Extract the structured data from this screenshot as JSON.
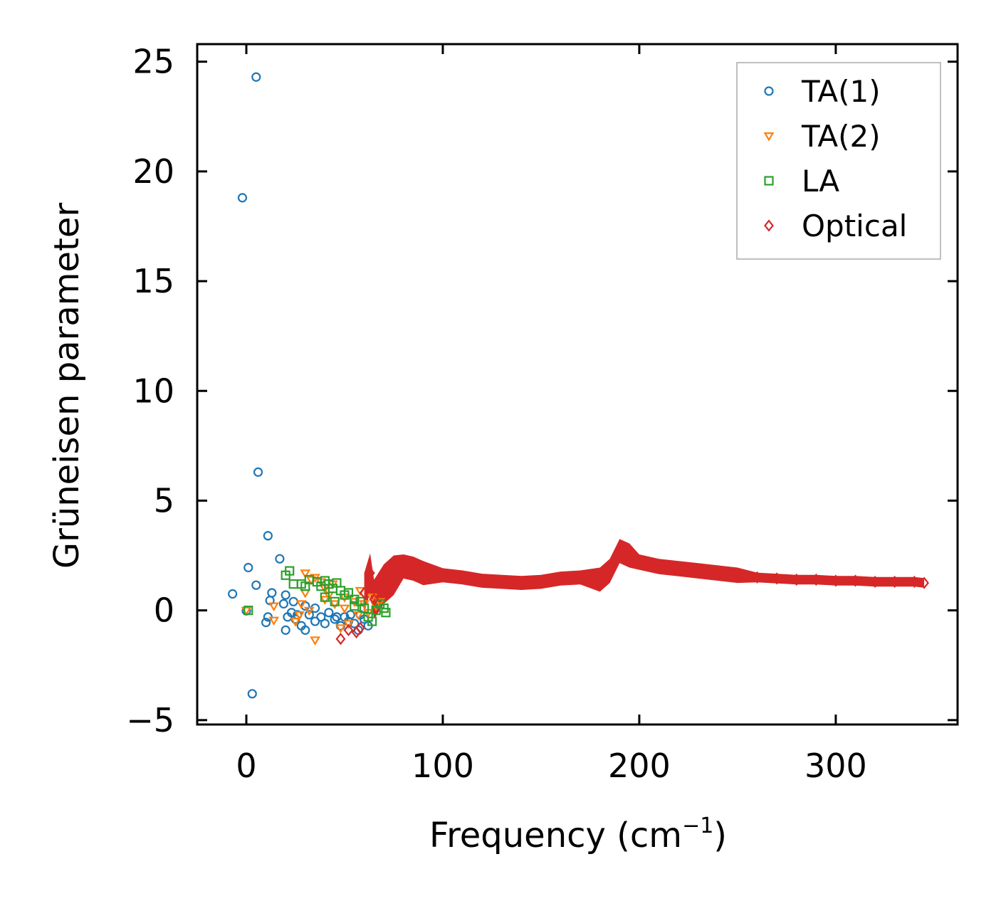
{
  "chart_data": {
    "type": "scatter",
    "xlabel_main": "Frequency (cm",
    "xlabel_sup": "−1",
    "xlabel_close": ")",
    "ylabel": "Grüneisen parameter",
    "xlim": [
      -25,
      362
    ],
    "ylim": [
      -5.2,
      25.8
    ],
    "x_ticks": [
      0,
      100,
      200,
      300
    ],
    "x_tick_labels": [
      "0",
      "100",
      "200",
      "300"
    ],
    "y_ticks": [
      -5,
      0,
      5,
      10,
      15,
      20,
      25
    ],
    "y_tick_labels": [
      "−5",
      "0",
      "5",
      "10",
      "15",
      "20",
      "25"
    ],
    "legend_position": "top-right",
    "series": [
      {
        "name": "TA(1)",
        "marker": "circle",
        "color": "#1f77b4",
        "points": [
          [
            5,
            24.3
          ],
          [
            -2,
            18.8
          ],
          [
            6,
            6.3
          ],
          [
            11,
            3.4
          ],
          [
            1,
            1.95
          ],
          [
            17,
            2.35
          ],
          [
            5,
            1.15
          ],
          [
            -7,
            0.75
          ],
          [
            0,
            -0.02
          ],
          [
            3,
            -3.8
          ],
          [
            13,
            0.8
          ],
          [
            20,
            0.7
          ],
          [
            11,
            -0.3
          ],
          [
            10,
            -0.55
          ],
          [
            12,
            0.45
          ],
          [
            19,
            0.3
          ],
          [
            21,
            -0.3
          ],
          [
            23,
            -0.1
          ],
          [
            25,
            -0.4
          ],
          [
            28,
            -0.7
          ],
          [
            30,
            -0.9
          ],
          [
            20,
            -0.9
          ],
          [
            32,
            -0.2
          ],
          [
            35,
            -0.5
          ],
          [
            38,
            -0.3
          ],
          [
            40,
            -0.6
          ],
          [
            42,
            -0.1
          ],
          [
            45,
            -0.4
          ],
          [
            48,
            -0.7
          ],
          [
            50,
            -0.3
          ],
          [
            52,
            -0.5
          ],
          [
            55,
            -0.6
          ],
          [
            57,
            -0.9
          ],
          [
            58,
            -0.2
          ],
          [
            60,
            -0.4
          ],
          [
            62,
            -0.7
          ],
          [
            30,
            0.2
          ],
          [
            35,
            0.1
          ],
          [
            24,
            0.4
          ],
          [
            26,
            -0.2
          ],
          [
            46,
            -0.3
          ],
          [
            53,
            -0.2
          ]
        ]
      },
      {
        "name": "TA(2)",
        "marker": "triangle-down",
        "color": "#ff7f0e",
        "points": [
          [
            0,
            0.0
          ],
          [
            14,
            0.2
          ],
          [
            14,
            -0.45
          ],
          [
            25,
            -0.5
          ],
          [
            30,
            0.8
          ],
          [
            30,
            1.7
          ],
          [
            33,
            1.4
          ],
          [
            35,
            1.5
          ],
          [
            35,
            -1.35
          ],
          [
            38,
            1.3
          ],
          [
            40,
            1.0
          ],
          [
            40,
            0.5
          ],
          [
            42,
            0.7
          ],
          [
            44,
            1.2
          ],
          [
            45,
            0.3
          ],
          [
            48,
            -0.8
          ],
          [
            50,
            0.6
          ],
          [
            50,
            0.1
          ],
          [
            52,
            -0.6
          ],
          [
            55,
            0.4
          ],
          [
            57,
            -0.2
          ],
          [
            58,
            0.9
          ],
          [
            60,
            0.3
          ],
          [
            62,
            -0.1
          ],
          [
            64,
            0.6
          ],
          [
            66,
            0.2
          ],
          [
            68,
            0.4
          ],
          [
            28,
            0.3
          ],
          [
            27,
            -0.2
          ],
          [
            32,
            0.0
          ]
        ]
      },
      {
        "name": "LA",
        "marker": "square",
        "color": "#2ca02c",
        "points": [
          [
            1,
            0.0
          ],
          [
            22,
            1.8
          ],
          [
            20,
            1.6
          ],
          [
            24,
            1.2
          ],
          [
            28,
            1.2
          ],
          [
            30,
            1.1
          ],
          [
            32,
            1.4
          ],
          [
            36,
            1.3
          ],
          [
            38,
            1.1
          ],
          [
            40,
            1.35
          ],
          [
            42,
            1.2
          ],
          [
            44,
            1.0
          ],
          [
            46,
            1.25
          ],
          [
            48,
            0.9
          ],
          [
            50,
            0.7
          ],
          [
            52,
            0.8
          ],
          [
            55,
            0.5
          ],
          [
            58,
            0.4
          ],
          [
            60,
            0.1
          ],
          [
            62,
            -0.3
          ],
          [
            64,
            -0.5
          ],
          [
            66,
            0.0
          ],
          [
            68,
            0.3
          ],
          [
            70,
            0.1
          ],
          [
            71,
            -0.1
          ],
          [
            45,
            0.4
          ],
          [
            40,
            0.6
          ],
          [
            55,
            0.2
          ]
        ]
      },
      {
        "name": "Optical",
        "marker": "diamond",
        "color": "#d62728",
        "points": [
          [
            48,
            -1.3
          ],
          [
            52,
            -0.9
          ],
          [
            56,
            -1.0
          ],
          [
            58,
            -0.8
          ],
          [
            63,
            1.7
          ],
          [
            60,
            0.8
          ],
          [
            65,
            0.5
          ],
          [
            70,
            1.2
          ],
          [
            75,
            1.6
          ],
          [
            80,
            2.0
          ],
          [
            85,
            1.9
          ],
          [
            90,
            1.7
          ],
          [
            100,
            1.6
          ],
          [
            110,
            1.5
          ],
          [
            120,
            1.35
          ],
          [
            130,
            1.3
          ],
          [
            140,
            1.25
          ],
          [
            150,
            1.3
          ],
          [
            160,
            1.45
          ],
          [
            170,
            1.5
          ],
          [
            180,
            1.4
          ],
          [
            185,
            1.8
          ],
          [
            190,
            2.7
          ],
          [
            195,
            2.5
          ],
          [
            200,
            2.2
          ],
          [
            210,
            2.0
          ],
          [
            220,
            1.9
          ],
          [
            230,
            1.8
          ],
          [
            240,
            1.7
          ],
          [
            250,
            1.6
          ],
          [
            260,
            1.5
          ],
          [
            270,
            1.45
          ],
          [
            280,
            1.4
          ],
          [
            290,
            1.4
          ],
          [
            300,
            1.35
          ],
          [
            310,
            1.35
          ],
          [
            320,
            1.3
          ],
          [
            330,
            1.3
          ],
          [
            340,
            1.3
          ],
          [
            345,
            1.25
          ]
        ]
      }
    ]
  }
}
